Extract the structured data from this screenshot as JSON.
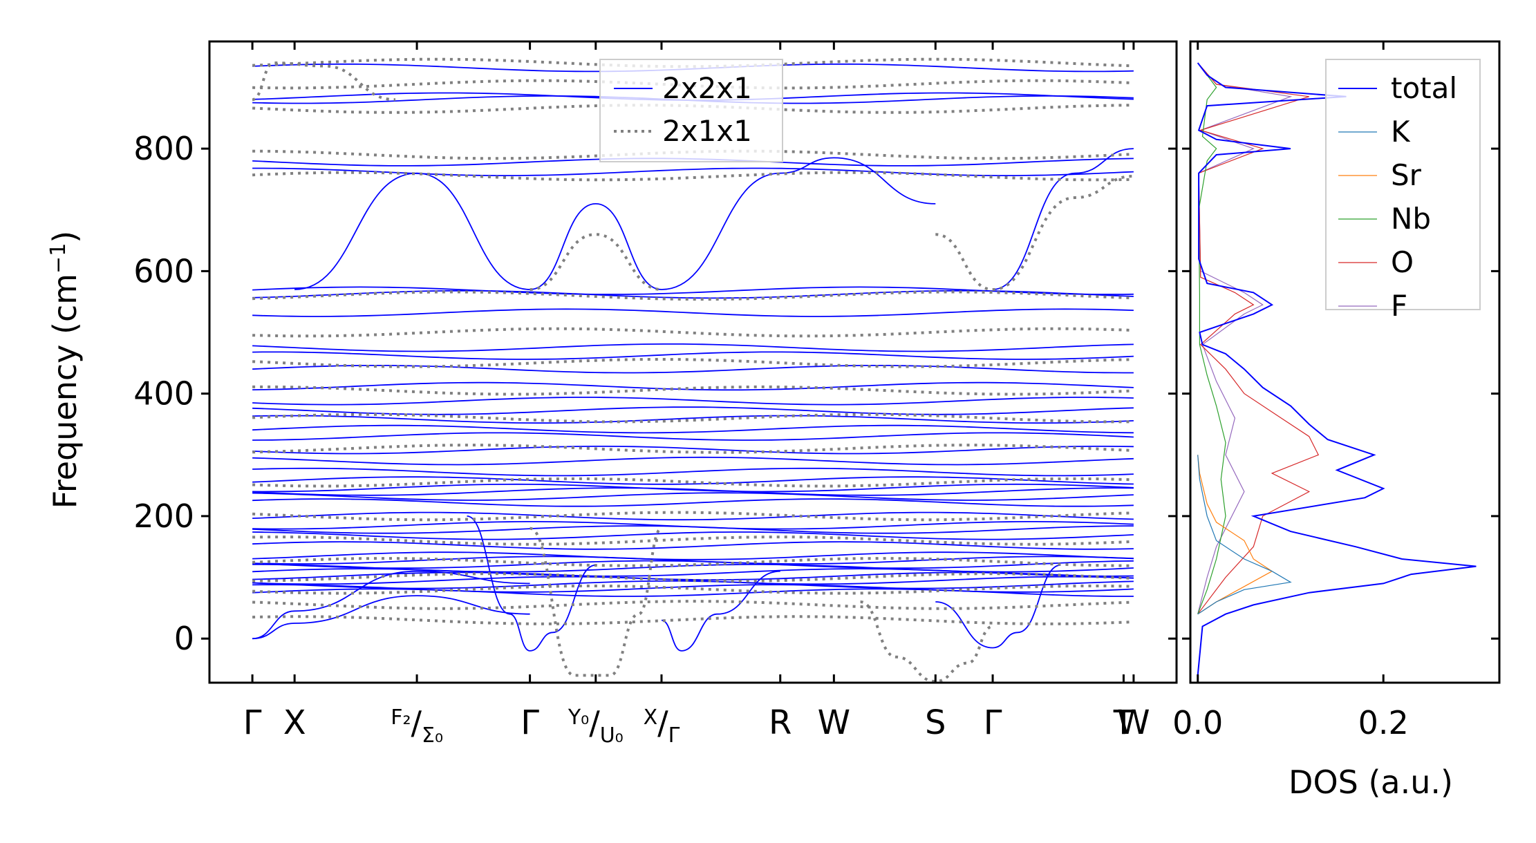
{
  "figure": {
    "colors": {
      "band_2x2x1": "#0000ff",
      "band_2x1x1": "#808080",
      "axis": "#000000"
    }
  },
  "chart_data": [
    {
      "type": "line",
      "panel": "phonon-band-structure",
      "ylabel": "Frequency (cm⁻¹)",
      "ylabel_base": "Frequency (cm",
      "ylabel_sup": "−1",
      "ylabel_close": ")",
      "ylim": [
        -72,
        975
      ],
      "yticks": [
        0,
        200,
        400,
        600,
        800
      ],
      "ytick_labels": [
        "0",
        "200",
        "400",
        "600",
        "800"
      ],
      "x_path": [
        {
          "label": "Γ",
          "x": 0.0
        },
        {
          "label": "X",
          "x": 0.059
        },
        {
          "label": "F₂/Σ₀",
          "label_parts": [
            "F₂",
            "/",
            "Σ₀"
          ],
          "x": 0.23
        },
        {
          "label": "Γ",
          "x": 0.388
        },
        {
          "label": "Y₀/U₀",
          "label_parts": [
            "Y₀",
            "/",
            "U₀"
          ],
          "x": 0.48
        },
        {
          "label": "X/Γ",
          "label_parts": [
            "X",
            "/",
            "Γ"
          ],
          "x": 0.572
        },
        {
          "label": "R",
          "x": 0.738
        },
        {
          "label": "W",
          "x": 0.813
        },
        {
          "label": "S",
          "x": 0.955
        },
        {
          "label": "Γ",
          "x": 1.035
        },
        {
          "label": "T",
          "x": 1.218
        },
        {
          "label": "W",
          "x": 1.232
        }
      ],
      "xlim": [
        -0.06,
        1.292
      ],
      "path_breaks_x": [
        0.388,
        0.572,
        1.035
      ],
      "legend": {
        "position": "upper center",
        "entries": [
          "2x2x1",
          "2x1x1"
        ]
      },
      "series": [
        {
          "name": "2x2x1",
          "style": "solid",
          "color": "#0000ff",
          "flat_bands_cm1": [
            75,
            82,
            88,
            95,
            102,
            108,
            115,
            121,
            128,
            135,
            152,
            168,
            178,
            185,
            200,
            222,
            232,
            240,
            246,
            258,
            272,
            290,
            308,
            330,
            342,
            358,
            372,
            388,
            412,
            440,
            462,
            475,
            532,
            562,
            568,
            762,
            778,
            880,
            885,
            932
          ],
          "dispersive_bands": [
            {
              "points": [
                [
                  0.0,
                  0
                ],
                [
                  0.059,
                  25
                ],
                [
                  0.23,
                  70
                ],
                [
                  0.388,
                  40
                ]
              ]
            },
            {
              "points": [
                [
                  0.0,
                  0
                ],
                [
                  0.059,
                  45
                ],
                [
                  0.23,
                  110
                ],
                [
                  0.388,
                  90
                ]
              ]
            },
            {
              "points": [
                [
                  0.3,
                  200
                ],
                [
                  0.36,
                  40
                ],
                [
                  0.388,
                  -20
                ],
                [
                  0.42,
                  10
                ],
                [
                  0.48,
                  120
                ]
              ]
            },
            {
              "points": [
                [
                  0.572,
                  30
                ],
                [
                  0.6,
                  -20
                ],
                [
                  0.65,
                  40
                ],
                [
                  0.738,
                  110
                ]
              ]
            },
            {
              "points": [
                [
                  0.955,
                  60
                ],
                [
                  1.035,
                  -15
                ],
                [
                  1.07,
                  10
                ],
                [
                  1.13,
                  120
                ]
              ]
            },
            {
              "points": [
                [
                  0.059,
                  570
                ],
                [
                  0.23,
                  760
                ],
                [
                  0.388,
                  570
                ]
              ]
            },
            {
              "points": [
                [
                  0.388,
                  570
                ],
                [
                  0.48,
                  710
                ],
                [
                  0.572,
                  570
                ]
              ]
            },
            {
              "points": [
                [
                  0.572,
                  570
                ],
                [
                  0.738,
                  760
                ],
                [
                  0.813,
                  785
                ],
                [
                  0.955,
                  710
                ]
              ]
            },
            {
              "points": [
                [
                  1.035,
                  570
                ],
                [
                  1.15,
                  760
                ],
                [
                  1.232,
                  800
                ]
              ]
            }
          ]
        },
        {
          "name": "2x1x1",
          "style": "dotted",
          "color": "#808080",
          "flat_bands_cm1": [
            30,
            55,
            80,
            100,
            125,
            160,
            200,
            255,
            310,
            360,
            405,
            450,
            500,
            560,
            755,
            790,
            865,
            905,
            940
          ],
          "dispersive_bands": [
            {
              "points": [
                [
                  0.388,
                  180
                ],
                [
                  0.45,
                  -60
                ],
                [
                  0.5,
                  -60
                ],
                [
                  0.54,
                  40
                ],
                [
                  0.572,
                  180
                ]
              ]
            },
            {
              "points": [
                [
                  0.85,
                  60
                ],
                [
                  0.9,
                  -30
                ],
                [
                  0.955,
                  -70
                ],
                [
                  1.0,
                  -40
                ],
                [
                  1.035,
                  20
                ]
              ]
            },
            {
              "points": [
                [
                  0.388,
                  570
                ],
                [
                  0.48,
                  660
                ],
                [
                  0.572,
                  570
                ]
              ]
            },
            {
              "points": [
                [
                  0.955,
                  660
                ],
                [
                  1.035,
                  570
                ],
                [
                  1.15,
                  720
                ],
                [
                  1.232,
                  755
                ]
              ]
            },
            {
              "points": [
                [
                  0.0,
                  880
                ],
                [
                  0.03,
                  940
                ],
                [
                  0.1,
                  935
                ],
                [
                  0.2,
                  880
                ]
              ]
            }
          ]
        }
      ]
    },
    {
      "type": "line",
      "panel": "density-of-states",
      "xlabel": "DOS (a.u.)",
      "xlim": [
        -0.008,
        0.325
      ],
      "xticks": [
        0.0,
        0.2
      ],
      "xtick_labels": [
        "0.0",
        "0.2"
      ],
      "ylim": [
        -72,
        975
      ],
      "legend": {
        "position": "upper right",
        "entries": [
          "total",
          "K",
          "Sr",
          "Nb",
          "O",
          "F"
        ]
      },
      "series": [
        {
          "name": "total",
          "color": "#0000ff",
          "points": [
            [
              0.0,
              -60
            ],
            [
              0.005,
              20
            ],
            [
              0.03,
              40
            ],
            [
              0.06,
              55
            ],
            [
              0.12,
              75
            ],
            [
              0.2,
              90
            ],
            [
              0.23,
              105
            ],
            [
              0.3,
              118
            ],
            [
              0.22,
              130
            ],
            [
              0.17,
              150
            ],
            [
              0.1,
              175
            ],
            [
              0.06,
              200
            ],
            [
              0.18,
              230
            ],
            [
              0.2,
              245
            ],
            [
              0.15,
              275
            ],
            [
              0.19,
              300
            ],
            [
              0.14,
              325
            ],
            [
              0.12,
              350
            ],
            [
              0.1,
              380
            ],
            [
              0.07,
              410
            ],
            [
              0.05,
              440
            ],
            [
              0.03,
              465
            ],
            [
              0.005,
              480
            ],
            [
              0.002,
              500
            ],
            [
              0.06,
              530
            ],
            [
              0.08,
              545
            ],
            [
              0.06,
              565
            ],
            [
              0.01,
              580
            ],
            [
              0.001,
              620
            ],
            [
              0.001,
              760
            ],
            [
              0.02,
              790
            ],
            [
              0.1,
              800
            ],
            [
              0.02,
              815
            ],
            [
              0.001,
              830
            ],
            [
              0.01,
              870
            ],
            [
              0.16,
              885
            ],
            [
              0.03,
              900
            ],
            [
              0.01,
              920
            ],
            [
              0.0,
              940
            ]
          ]
        },
        {
          "name": "K",
          "color": "#1f77b4",
          "points": [
            [
              0.0,
              40
            ],
            [
              0.02,
              60
            ],
            [
              0.05,
              80
            ],
            [
              0.1,
              92
            ],
            [
              0.08,
              110
            ],
            [
              0.05,
              130
            ],
            [
              0.02,
              160
            ],
            [
              0.01,
              200
            ],
            [
              0.002,
              260
            ],
            [
              0.0,
              300
            ]
          ]
        },
        {
          "name": "Sr",
          "color": "#ff7f0e",
          "points": [
            [
              0.0,
              40
            ],
            [
              0.02,
              60
            ],
            [
              0.05,
              85
            ],
            [
              0.08,
              110
            ],
            [
              0.06,
              130
            ],
            [
              0.05,
              160
            ],
            [
              0.02,
              190
            ],
            [
              0.01,
              220
            ],
            [
              0.002,
              270
            ],
            [
              0.0,
              300
            ]
          ]
        },
        {
          "name": "Nb",
          "color": "#2ca02c",
          "points": [
            [
              0.0,
              40
            ],
            [
              0.01,
              80
            ],
            [
              0.02,
              130
            ],
            [
              0.03,
              200
            ],
            [
              0.025,
              260
            ],
            [
              0.03,
              320
            ],
            [
              0.02,
              380
            ],
            [
              0.01,
              430
            ],
            [
              0.002,
              480
            ],
            [
              0.002,
              560
            ],
            [
              0.001,
              700
            ],
            [
              0.01,
              780
            ],
            [
              0.02,
              800
            ],
            [
              0.005,
              820
            ],
            [
              0.01,
              880
            ],
            [
              0.02,
              900
            ],
            [
              0.005,
              930
            ]
          ]
        },
        {
          "name": "O",
          "color": "#d62728",
          "points": [
            [
              0.0,
              40
            ],
            [
              0.03,
              100
            ],
            [
              0.06,
              150
            ],
            [
              0.07,
              200
            ],
            [
              0.12,
              240
            ],
            [
              0.08,
              270
            ],
            [
              0.13,
              300
            ],
            [
              0.12,
              330
            ],
            [
              0.09,
              360
            ],
            [
              0.05,
              400
            ],
            [
              0.03,
              440
            ],
            [
              0.003,
              480
            ],
            [
              0.04,
              530
            ],
            [
              0.06,
              545
            ],
            [
              0.04,
              565
            ],
            [
              0.003,
              590
            ],
            [
              0.001,
              760
            ],
            [
              0.07,
              800
            ],
            [
              0.003,
              830
            ],
            [
              0.12,
              885
            ],
            [
              0.02,
              905
            ],
            [
              0.0,
              940
            ]
          ]
        },
        {
          "name": "F",
          "color": "#9467bd",
          "points": [
            [
              0.0,
              40
            ],
            [
              0.01,
              100
            ],
            [
              0.02,
              150
            ],
            [
              0.05,
              240
            ],
            [
              0.03,
              300
            ],
            [
              0.04,
              360
            ],
            [
              0.02,
              420
            ],
            [
              0.005,
              480
            ],
            [
              0.05,
              530
            ],
            [
              0.07,
              545
            ],
            [
              0.05,
              565
            ],
            [
              0.003,
              600
            ],
            [
              0.001,
              760
            ],
            [
              0.06,
              800
            ],
            [
              0.003,
              830
            ],
            [
              0.1,
              885
            ],
            [
              0.02,
              905
            ],
            [
              0.0,
              940
            ]
          ]
        }
      ]
    }
  ]
}
